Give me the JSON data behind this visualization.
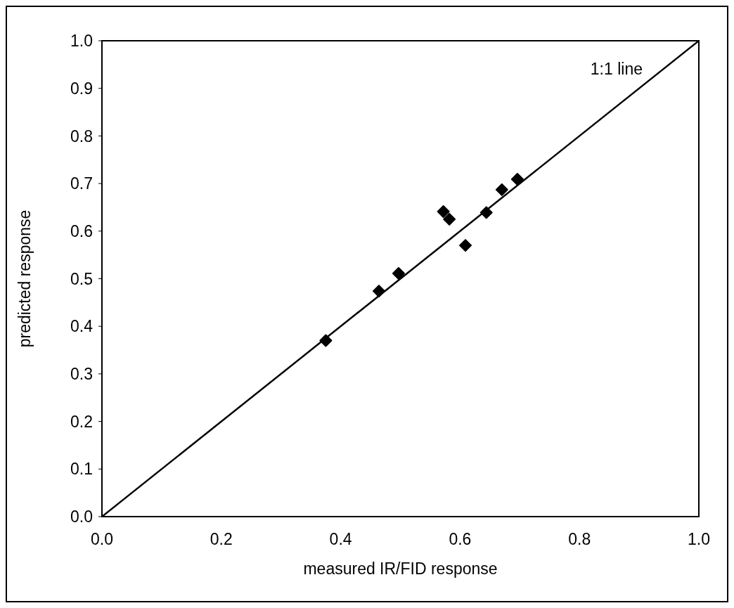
{
  "chart_data": {
    "type": "scatter",
    "xlabel": "measured IR/FID response",
    "ylabel": "predicted response",
    "xlim": [
      0,
      1
    ],
    "ylim": [
      0,
      1
    ],
    "xticks": [
      {
        "value": 0,
        "label": "0.0"
      },
      {
        "value": 0.2,
        "label": "0.2"
      },
      {
        "value": 0.4,
        "label": "0.4"
      },
      {
        "value": 0.6,
        "label": "0.6"
      },
      {
        "value": 0.8,
        "label": "0.8"
      },
      {
        "value": 1,
        "label": "1.0"
      }
    ],
    "yticks": [
      {
        "value": 0,
        "label": "0.0"
      },
      {
        "value": 0.1,
        "label": "0.1"
      },
      {
        "value": 0.2,
        "label": "0.2"
      },
      {
        "value": 0.3,
        "label": "0.3"
      },
      {
        "value": 0.4,
        "label": "0.4"
      },
      {
        "value": 0.5,
        "label": "0.5"
      },
      {
        "value": 0.6,
        "label": "0.6"
      },
      {
        "value": 0.7,
        "label": "0.7"
      },
      {
        "value": 0.8,
        "label": "0.8"
      },
      {
        "value": 0.9,
        "label": "0.9"
      },
      {
        "value": 1,
        "label": "1.0"
      }
    ],
    "grid": false,
    "series": [
      {
        "marker": "diamond",
        "color": "#000000",
        "x": [
          0.375,
          0.464,
          0.497,
          0.572,
          0.582,
          0.609,
          0.644,
          0.67,
          0.696
        ],
        "values": [
          0.37,
          0.474,
          0.511,
          0.641,
          0.625,
          0.57,
          0.639,
          0.687,
          0.709
        ]
      },
      {
        "type": "line",
        "name": "1:1 line",
        "color": "#000000",
        "x": [
          0,
          1
        ],
        "values": [
          0,
          1
        ],
        "marker": "none",
        "line_style": "solid"
      }
    ]
  }
}
